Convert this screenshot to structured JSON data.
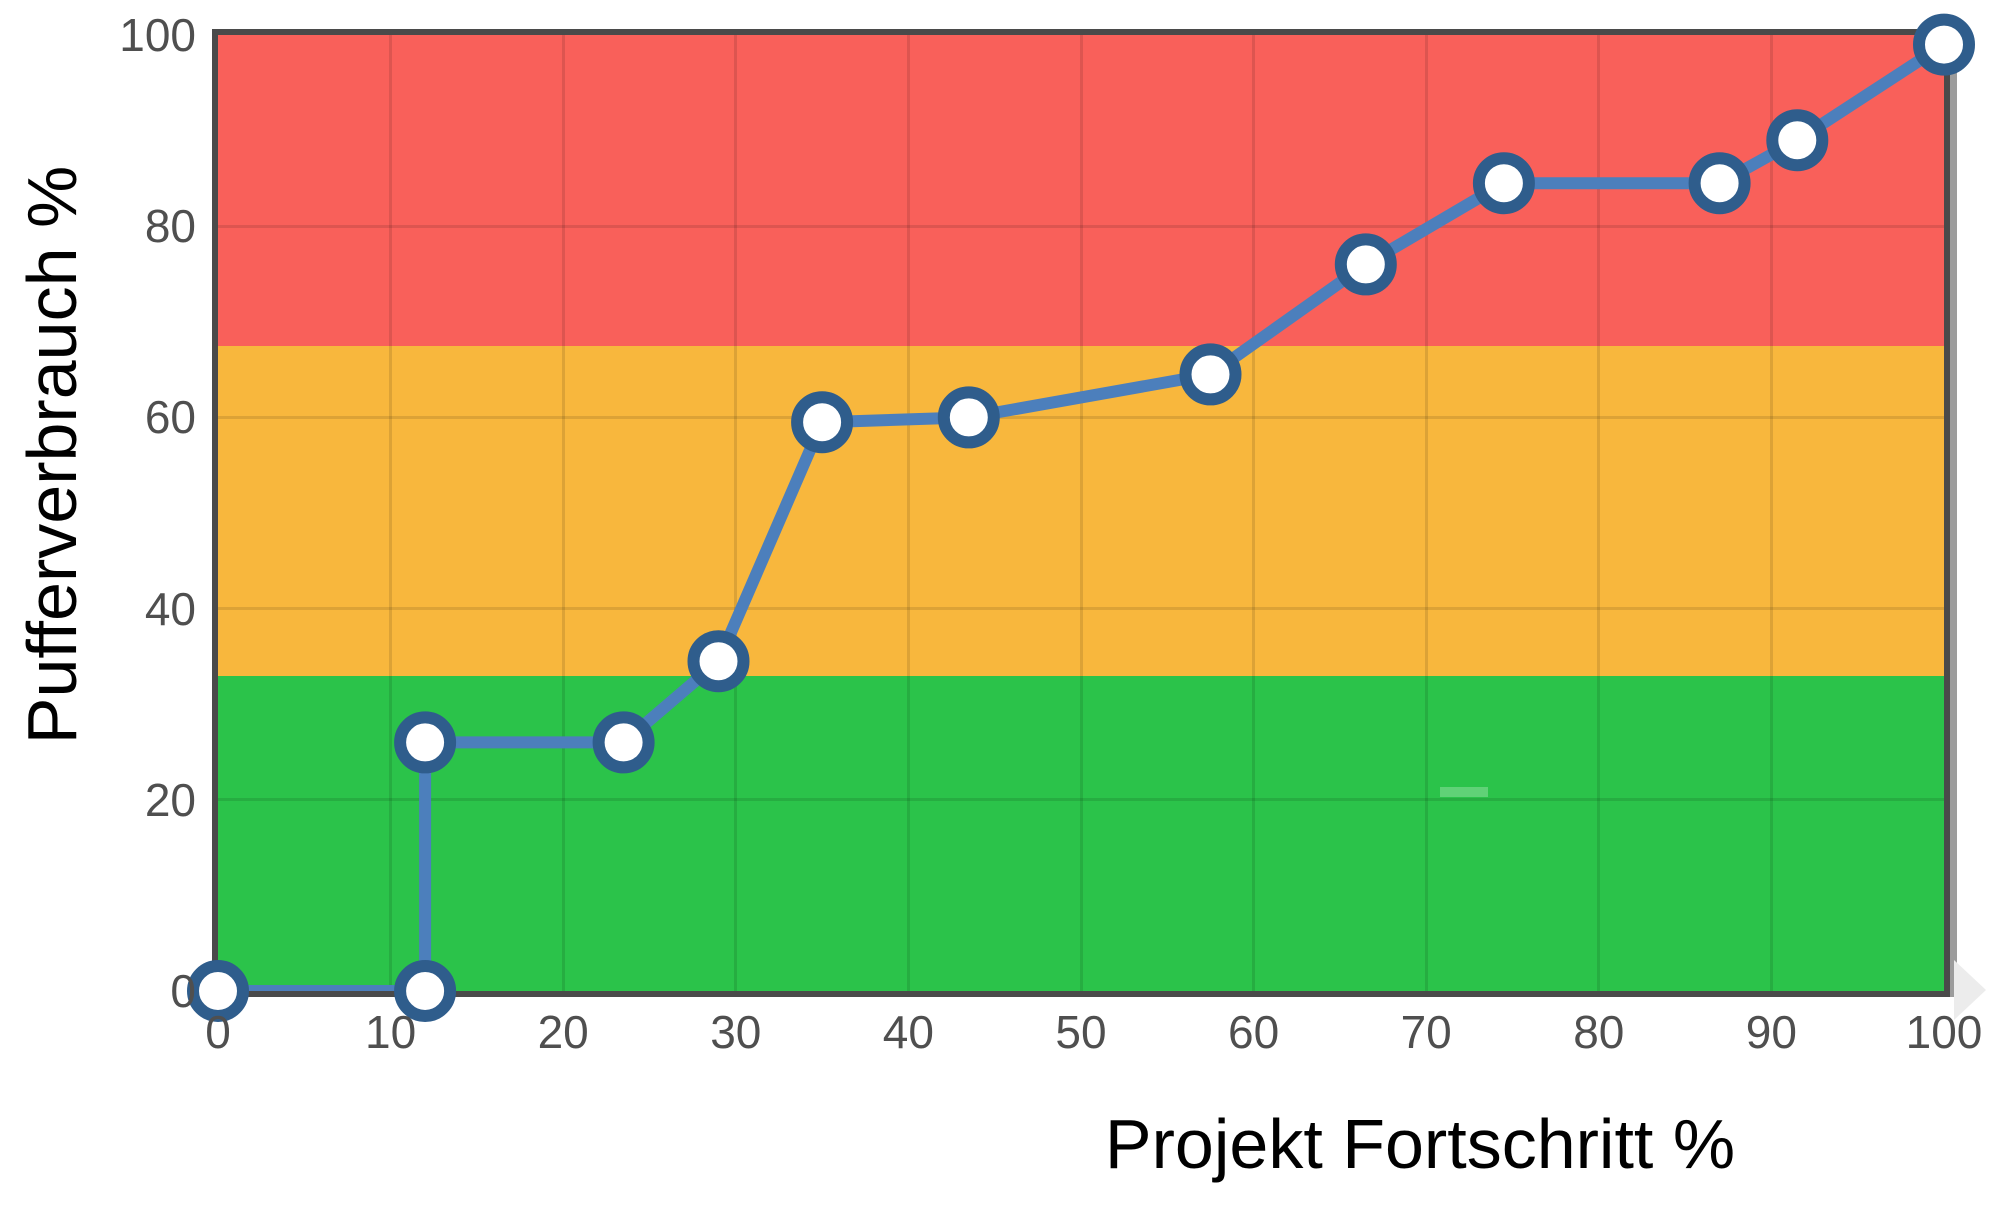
{
  "chart_data": {
    "type": "line",
    "title": "",
    "xlabel": "Projekt Fortschritt %",
    "ylabel": "Pufferverbrauch %",
    "xlim": [
      0,
      100
    ],
    "ylim": [
      0,
      100
    ],
    "x_ticks": [
      0,
      10,
      20,
      30,
      40,
      50,
      60,
      70,
      80,
      90,
      100
    ],
    "y_ticks": [
      0,
      20,
      40,
      60,
      80,
      100
    ],
    "grid": true,
    "legend": "none",
    "bands": [
      {
        "name": "green-zone",
        "from": 0,
        "to": 33,
        "color": "#2BC34A"
      },
      {
        "name": "yellow-zone",
        "from": 33,
        "to": 67.5,
        "color": "#F8B73D"
      },
      {
        "name": "red-zone",
        "from": 67.5,
        "to": 100,
        "color": "#F9605A"
      }
    ],
    "series": [
      {
        "name": "Pufferverbrauch",
        "points": [
          [
            0,
            0
          ],
          [
            12,
            0
          ],
          [
            12,
            26
          ],
          [
            23.5,
            26
          ],
          [
            29,
            34.5
          ],
          [
            35,
            59.5
          ],
          [
            43.5,
            60
          ],
          [
            57.5,
            64.5
          ],
          [
            66.5,
            76
          ],
          [
            74.5,
            84.5
          ],
          [
            87,
            84.5
          ],
          [
            91.5,
            89
          ],
          [
            100,
            99
          ]
        ]
      }
    ]
  },
  "colors": {
    "line": "#4C7FBC",
    "marker_ring": "#2F5D8C",
    "marker_fill": "#FFFFFF",
    "axis_border": "#4A4A4A",
    "plot_shadow": "#9C9C9C",
    "grid": "rgba(0,0,0,0.11)",
    "tick_text": "#4F4F4F",
    "title_text": "#000000"
  }
}
